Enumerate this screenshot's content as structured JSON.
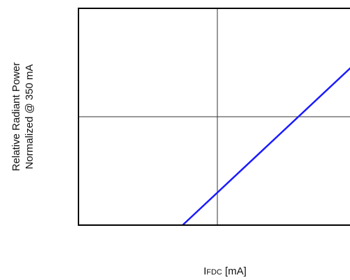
{
  "chart_data": {
    "type": "line",
    "title": "",
    "xlabel": {
      "main": "I",
      "subscript": "FDC",
      "unit": " [mA]"
    },
    "ylabel": {
      "line1": "Relative Radiant Power",
      "line2": "Normalized @ 350 mA"
    },
    "tick_labels_shown": false,
    "xlim": [
      0,
      800
    ],
    "ylim": [
      0,
      2.0
    ],
    "grid": true,
    "grid_x": [
      400
    ],
    "grid_y": [
      1.0
    ],
    "series": [
      {
        "color": "#1a1aff",
        "x": [
          300,
          800
        ],
        "y": [
          0.0,
          1.5
        ]
      }
    ]
  },
  "colors": {
    "series_line": "#1a1aff",
    "frame": "#000000",
    "grid": "#333333",
    "text": "#111111"
  }
}
